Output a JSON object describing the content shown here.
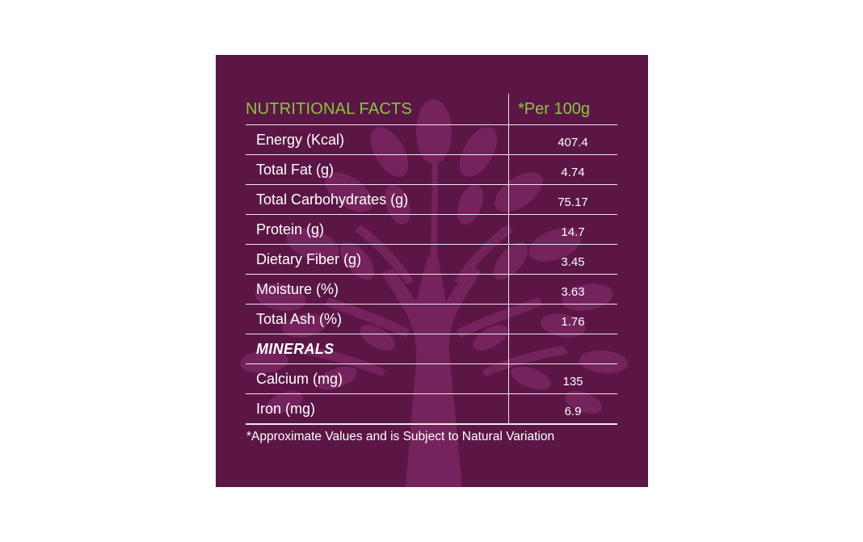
{
  "colors": {
    "panel_background": "#5b1646",
    "tree_leaf": "#74235c",
    "header_green": "#8cc63f",
    "rule": "#f1e6ee",
    "text": "#ffffff"
  },
  "table": {
    "title": "NUTRITIONAL FACTS",
    "per_label": "*Per 100g",
    "rows": [
      {
        "label": "Energy (Kcal)",
        "value": "407.4"
      },
      {
        "label": "Total Fat (g)",
        "value": "4.74"
      },
      {
        "label": "Total Carbohydrates (g)",
        "value": "75.17"
      },
      {
        "label": "Protein (g)",
        "value": "14.7"
      },
      {
        "label": "Dietary Fiber (g)",
        "value": "3.45"
      },
      {
        "label": "Moisture (%)",
        "value": "3.63"
      },
      {
        "label": "Total Ash (%)",
        "value": "1.76"
      },
      {
        "label": "MINERALS",
        "value": ""
      },
      {
        "label": "Calcium (mg)",
        "value": "135"
      },
      {
        "label": "Iron (mg)",
        "value": "6.9"
      }
    ]
  },
  "footnote": "*Approximate Values and is Subject to Natural Variation"
}
